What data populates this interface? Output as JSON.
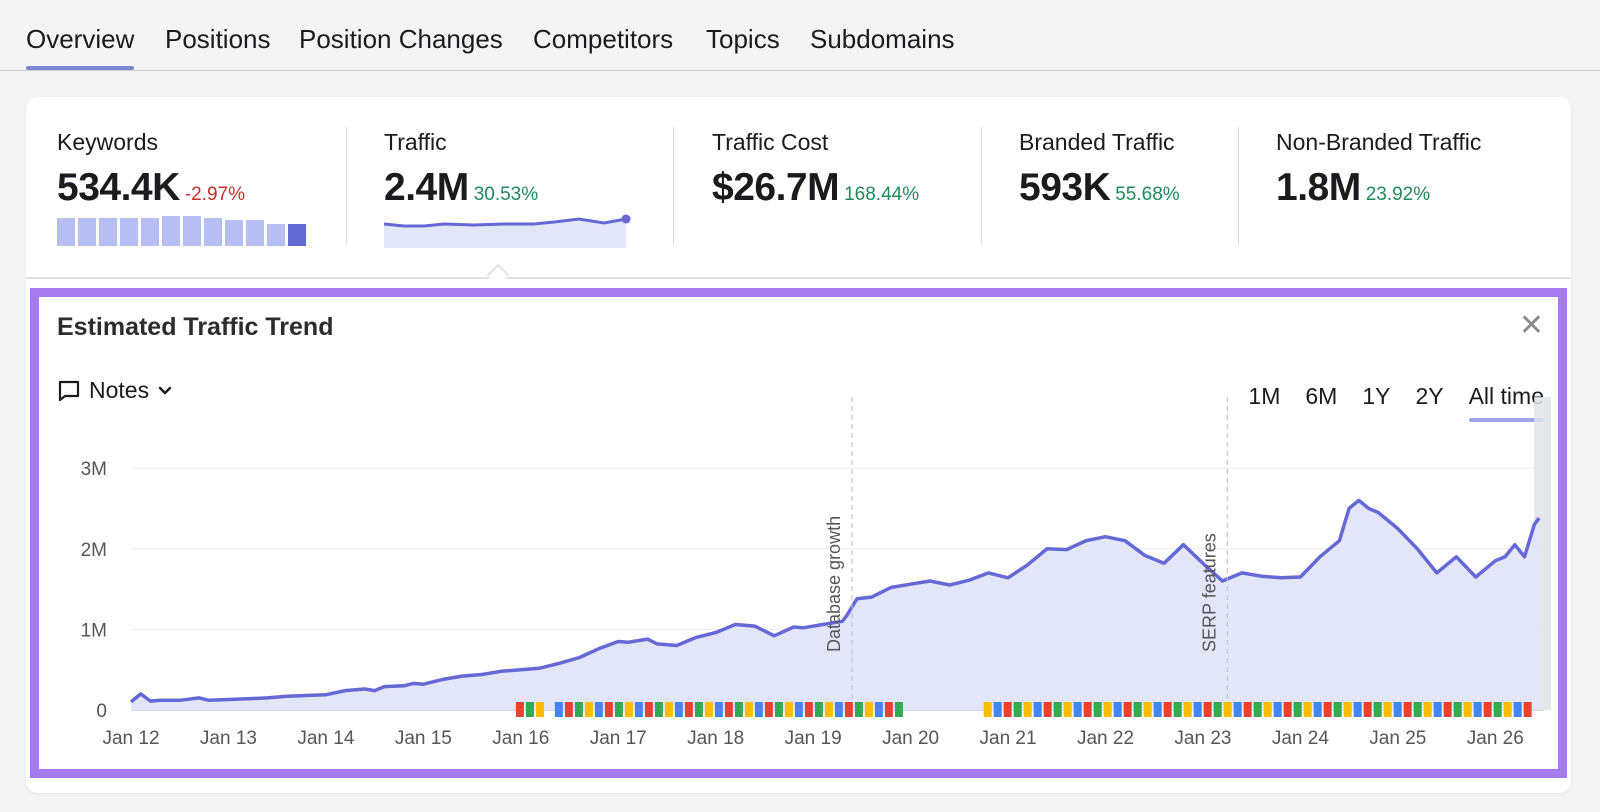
{
  "tabs": [
    "Overview",
    "Positions",
    "Position Changes",
    "Competitors",
    "Topics",
    "Subdomains"
  ],
  "metrics": [
    {
      "label": "Keywords",
      "value": "534.4K",
      "delta": "-2.97%"
    },
    {
      "label": "Traffic",
      "value": "2.4M",
      "delta": "30.53%"
    },
    {
      "label": "Traffic Cost",
      "value": "$26.7M",
      "delta": "168.44%"
    },
    {
      "label": "Branded Traffic",
      "value": "593K",
      "delta": "55.68%"
    },
    {
      "label": "Non-Branded Traffic",
      "value": "1.8M",
      "delta": "23.92%"
    }
  ],
  "colors": {
    "line": "#6469d6",
    "area": "#e3e5f8",
    "positive": "#1f8a5c",
    "negative": "#c4302b",
    "highlight": "#a57cf0"
  },
  "panel": {
    "title": "Estimated Traffic Trend",
    "notes_label": "Notes",
    "ranges": [
      "1M",
      "6M",
      "1Y",
      "2Y",
      "All time"
    ],
    "active_range": "All time"
  },
  "icons": {
    "notes": "speech-bubble-icon",
    "chevron": "chevron-down-icon",
    "close": "close-icon",
    "marker": "google-update-icon"
  },
  "chart_data": {
    "type": "area",
    "title": "Estimated Traffic Trend",
    "xlabel": "",
    "ylabel": "",
    "x_ticks": [
      "Jan 12",
      "Jan 13",
      "Jan 14",
      "Jan 15",
      "Jan 16",
      "Jan 17",
      "Jan 18",
      "Jan 19",
      "Jan 20",
      "Jan 21",
      "Jan 22",
      "Jan 23",
      "Jan 24",
      "Jan 25",
      "Jan 26"
    ],
    "y_ticks": [
      "0",
      "1M",
      "2M",
      "3M"
    ],
    "ylim": [
      0,
      3200000
    ],
    "xlim": [
      2012.0,
      2026.5
    ],
    "grid": true,
    "annotations": [
      {
        "x": 2019.4,
        "label": "Database growth"
      },
      {
        "x": 2023.25,
        "label": "SERP features"
      }
    ],
    "series": [
      {
        "x": [
          2012.0,
          2012.1,
          2012.2,
          2012.3,
          2012.5,
          2012.7,
          2012.8,
          2013.0,
          2013.2,
          2013.4,
          2013.6,
          2013.8,
          2014.0,
          2014.2,
          2014.4,
          2014.5,
          2014.6,
          2014.8,
          2014.9,
          2015.0,
          2015.2,
          2015.4,
          2015.6,
          2015.8,
          2016.0,
          2016.2,
          2016.4,
          2016.6,
          2016.8,
          2017.0,
          2017.1,
          2017.3,
          2017.4,
          2017.6,
          2017.8,
          2018.0,
          2018.2,
          2018.4,
          2018.6,
          2018.8,
          2018.9,
          2019.1,
          2019.3,
          2019.35,
          2019.45,
          2019.6,
          2019.8,
          2020.0,
          2020.2,
          2020.4,
          2020.6,
          2020.8,
          2021.0,
          2021.2,
          2021.4,
          2021.6,
          2021.8,
          2022.0,
          2022.2,
          2022.4,
          2022.6,
          2022.8,
          2023.0,
          2023.2,
          2023.4,
          2023.6,
          2023.8,
          2024.0,
          2024.2,
          2024.4,
          2024.5,
          2024.6,
          2024.7,
          2024.8,
          2025.0,
          2025.2,
          2025.4,
          2025.6,
          2025.8,
          2026.0,
          2026.1,
          2026.2,
          2026.3,
          2026.4,
          2026.45
        ],
        "y": [
          100000,
          200000,
          110000,
          120000,
          120000,
          150000,
          120000,
          130000,
          140000,
          150000,
          170000,
          180000,
          190000,
          240000,
          260000,
          240000,
          290000,
          300000,
          330000,
          320000,
          380000,
          420000,
          440000,
          480000,
          500000,
          520000,
          580000,
          650000,
          760000,
          850000,
          840000,
          880000,
          820000,
          800000,
          900000,
          960000,
          1060000,
          1040000,
          920000,
          1030000,
          1020000,
          1060000,
          1100000,
          1180000,
          1380000,
          1400000,
          1520000,
          1560000,
          1600000,
          1550000,
          1610000,
          1700000,
          1640000,
          1800000,
          2000000,
          1990000,
          2100000,
          2150000,
          2100000,
          1920000,
          1820000,
          2050000,
          1820000,
          1600000,
          1700000,
          1660000,
          1640000,
          1650000,
          1900000,
          2100000,
          2500000,
          2600000,
          2500000,
          2450000,
          2250000,
          2000000,
          1700000,
          1900000,
          1650000,
          1850000,
          1900000,
          2050000,
          1900000,
          2300000,
          2380000
        ]
      }
    ]
  }
}
